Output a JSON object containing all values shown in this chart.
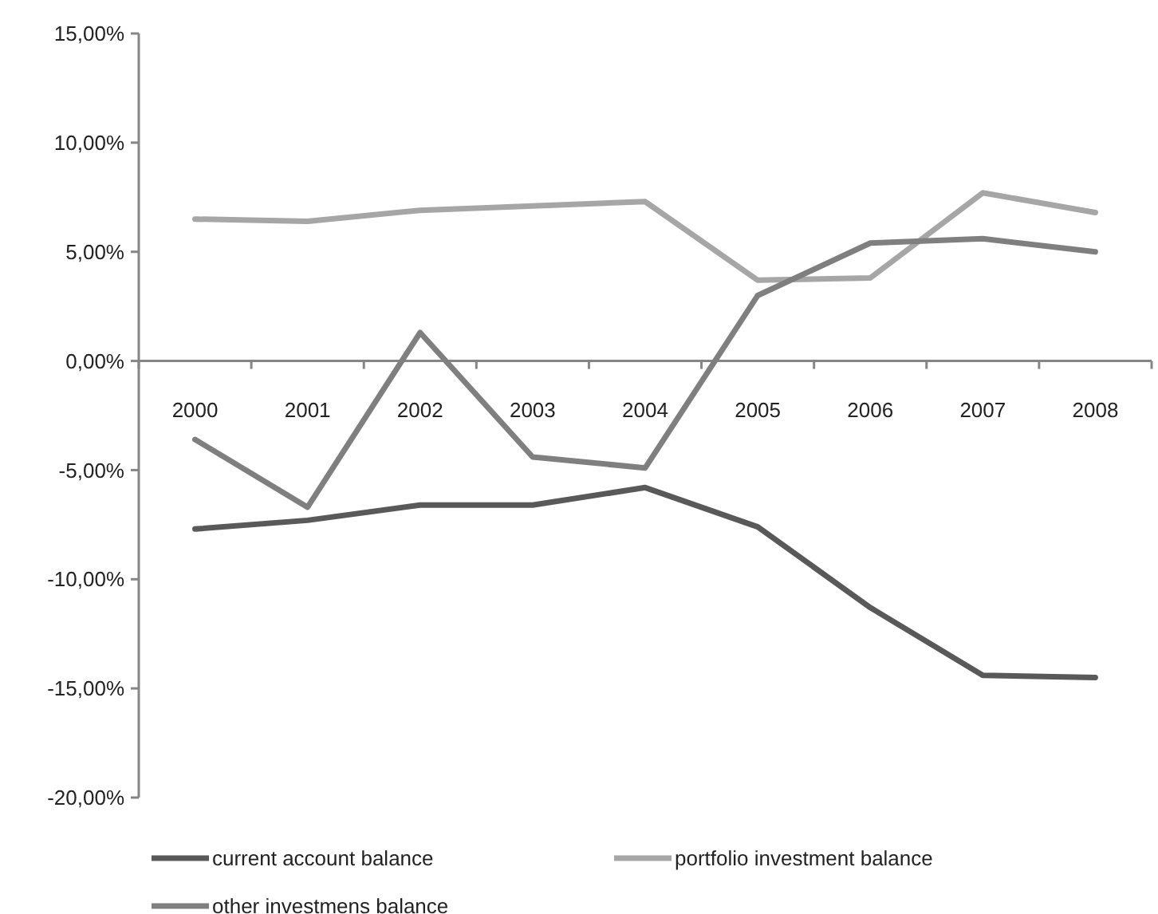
{
  "chart_data": {
    "type": "line",
    "categories": [
      "2000",
      "2001",
      "2002",
      "2003",
      "2004",
      "2005",
      "2006",
      "2007",
      "2008"
    ],
    "series": [
      {
        "name": "current account balance",
        "color": "#595959",
        "values": [
          -7.7,
          -7.3,
          -6.6,
          -6.6,
          -5.8,
          -7.6,
          -11.3,
          -14.4,
          -14.5
        ]
      },
      {
        "name": "portfolio investment balance",
        "color": "#a6a6a6",
        "values": [
          6.5,
          6.4,
          6.9,
          7.1,
          7.3,
          3.7,
          3.8,
          7.7,
          6.8
        ]
      },
      {
        "name": "other investmens balance",
        "color": "#7f7f7f",
        "values": [
          -3.6,
          -6.7,
          1.3,
          -4.4,
          -4.9,
          3.0,
          5.4,
          5.6,
          5.0
        ]
      }
    ],
    "ylim": [
      -20,
      15
    ],
    "yticks": [
      {
        "value": -20,
        "label": "-20,00%"
      },
      {
        "value": -15,
        "label": "-15,00%"
      },
      {
        "value": -10,
        "label": "-10,00%"
      },
      {
        "value": -5,
        "label": "-5,00%"
      },
      {
        "value": 0,
        "label": "0,00%"
      },
      {
        "value": 5,
        "label": "5,00%"
      },
      {
        "value": 10,
        "label": "10,00%"
      },
      {
        "value": 15,
        "label": "15,00%"
      }
    ],
    "grid": false,
    "legend": "bottom",
    "marker": "none",
    "line_style": "solid"
  }
}
